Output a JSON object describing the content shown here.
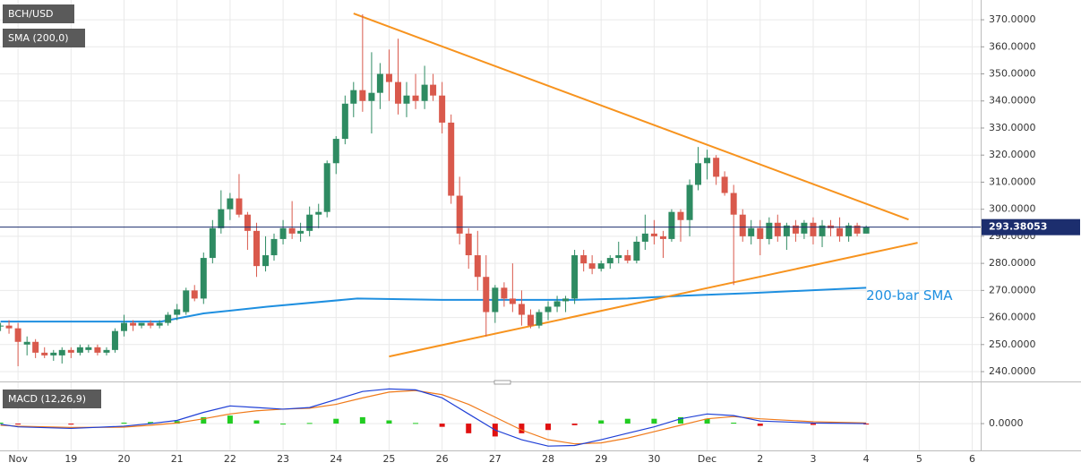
{
  "chart_data": {
    "type": "candlestick",
    "title": "BCH/USD",
    "indicator_label": "SMA (200,0)",
    "x": [
      -0.33,
      -0.17,
      0,
      0.17,
      0.33,
      0.5,
      0.67,
      0.83,
      1,
      1.17,
      1.33,
      1.5,
      1.67,
      1.83,
      2,
      2.17,
      2.33,
      2.5,
      2.67,
      2.83,
      3,
      3.17,
      3.33,
      3.5,
      3.67,
      3.83,
      4,
      4.17,
      4.33,
      4.5,
      4.67,
      4.83,
      5,
      5.17,
      5.33,
      5.5,
      5.67,
      5.83,
      6,
      6.17,
      6.33,
      6.5,
      6.67,
      6.83,
      7,
      7.17,
      7.33,
      7.5,
      7.67,
      7.83,
      8,
      8.17,
      8.33,
      8.5,
      8.67,
      8.83,
      9,
      9.17,
      9.33,
      9.5,
      9.67,
      9.83,
      10,
      10.17,
      10.33,
      10.5,
      10.67,
      10.83,
      11,
      11.17,
      11.33,
      11.5,
      11.67,
      11.83,
      12,
      12.17,
      12.33,
      12.5,
      12.67,
      12.83,
      13,
      13.17,
      13.33,
      13.5,
      13.67,
      13.83,
      14,
      14.17,
      14.33,
      14.5,
      14.67,
      14.83,
      15,
      15.17,
      15.33,
      15.5,
      15.67,
      15.83,
      16
    ],
    "open": [
      257,
      257,
      256,
      250,
      251,
      247,
      246,
      246,
      248,
      247,
      248,
      249,
      247,
      248,
      255,
      258,
      257,
      258,
      257,
      258,
      261,
      262,
      270,
      267,
      282,
      293,
      300,
      304,
      298,
      292,
      279,
      283,
      289,
      293,
      291,
      292,
      298,
      299,
      317,
      326,
      339,
      344,
      340,
      343,
      350,
      347,
      339,
      342,
      340,
      346,
      342,
      332,
      305,
      291,
      283,
      275,
      262,
      271,
      267,
      265,
      261,
      257,
      262,
      264,
      266,
      267,
      283,
      280,
      278,
      280,
      282,
      283,
      281,
      288,
      291,
      290,
      289,
      299,
      296,
      309,
      317,
      319,
      312,
      306,
      298,
      290,
      293,
      289,
      295,
      290,
      294,
      291,
      295,
      290,
      294,
      293,
      290,
      294,
      291
    ],
    "high": [
      258,
      259,
      258,
      253,
      252,
      249,
      248,
      249,
      249,
      250,
      250,
      250,
      249,
      256,
      261,
      259,
      258,
      259,
      259,
      262,
      265,
      271,
      272,
      284,
      296,
      307,
      306,
      313,
      299,
      295,
      290,
      291,
      296,
      303,
      295,
      301,
      302,
      318,
      327,
      342,
      347,
      372,
      358,
      354,
      359,
      363,
      347,
      350,
      353,
      350,
      347,
      335,
      312,
      293,
      292,
      283,
      272,
      273,
      280,
      270,
      263,
      263,
      266,
      268,
      268,
      285,
      285,
      283,
      281,
      283,
      288,
      285,
      290,
      298,
      296,
      292,
      300,
      300,
      311,
      323,
      322,
      320,
      314,
      309,
      300,
      296,
      296,
      297,
      298,
      295,
      296,
      296,
      297,
      296,
      296,
      297,
      295,
      295,
      294
    ],
    "low": [
      255,
      254,
      242,
      246,
      245,
      245,
      244,
      243,
      245,
      246,
      247,
      246,
      246,
      247,
      253,
      255,
      256,
      256,
      256,
      257,
      259,
      261,
      266,
      265,
      280,
      291,
      296,
      297,
      285,
      275,
      277,
      281,
      287,
      289,
      288,
      290,
      293,
      297,
      313,
      324,
      334,
      336,
      328,
      337,
      340,
      335,
      334,
      337,
      337,
      340,
      328,
      302,
      287,
      278,
      270,
      253,
      258,
      264,
      262,
      257,
      256,
      256,
      259,
      262,
      262,
      265,
      277,
      276,
      277,
      278,
      280,
      280,
      280,
      285,
      287,
      282,
      288,
      288,
      290,
      307,
      311,
      309,
      305,
      272,
      288,
      287,
      283,
      287,
      288,
      285,
      288,
      289,
      287,
      286,
      290,
      288,
      288,
      290,
      291
    ],
    "close": [
      257,
      256,
      251,
      251,
      247,
      246,
      247,
      248,
      247,
      249,
      249,
      247,
      248,
      255,
      258,
      257,
      258,
      257,
      258,
      261,
      263,
      270,
      267,
      282,
      293,
      300,
      304,
      298,
      292,
      279,
      283,
      289,
      293,
      291,
      292,
      298,
      299,
      317,
      326,
      339,
      344,
      340,
      343,
      350,
      347,
      339,
      342,
      340,
      346,
      342,
      332,
      305,
      291,
      283,
      275,
      262,
      271,
      267,
      265,
      261,
      257,
      262,
      264,
      266,
      267,
      283,
      280,
      278,
      280,
      282,
      283,
      281,
      288,
      291,
      290,
      289,
      299,
      296,
      309,
      317,
      319,
      312,
      306,
      298,
      290,
      293,
      289,
      295,
      290,
      294,
      291,
      295,
      290,
      294,
      293,
      290,
      294,
      291,
      293.38053
    ],
    "up_color": "#2e8b62",
    "down_color": "#d9594c",
    "sma": {
      "x": [
        -0.33,
        2.7,
        3.5,
        4.7,
        6.4,
        8,
        9,
        10.5,
        11.5,
        12.5,
        13.8,
        16
      ],
      "values": [
        258.5,
        258.5,
        261.5,
        264,
        267,
        266.5,
        266.5,
        266.5,
        267,
        268,
        269,
        271
      ],
      "color": "#1e8fe0"
    },
    "sma_annotation": {
      "text": "200-bar SMA",
      "x": 16,
      "y": 268
    },
    "trendlines": [
      {
        "x": [
          6.33,
          16.8
        ],
        "values": [
          372.3,
          296.2
        ]
      },
      {
        "x": [
          7.0,
          16.97
        ],
        "values": [
          245.6,
          287.6
        ]
      }
    ],
    "trendline_color": "#f7931e",
    "price_line_color": "#1c2e6e",
    "xlim": [
      -0.34,
      18.16
    ],
    "ylim": [
      236.7,
      377.3
    ],
    "xticks": [
      {
        "value": 0,
        "label": "Nov"
      },
      {
        "value": 1,
        "label": "19"
      },
      {
        "value": 2,
        "label": "20"
      },
      {
        "value": 3,
        "label": "21"
      },
      {
        "value": 4,
        "label": "22"
      },
      {
        "value": 5,
        "label": "23"
      },
      {
        "value": 6,
        "label": "24"
      },
      {
        "value": 7,
        "label": "25"
      },
      {
        "value": 8,
        "label": "26"
      },
      {
        "value": 9,
        "label": "27"
      },
      {
        "value": 10,
        "label": "28"
      },
      {
        "value": 11,
        "label": "29"
      },
      {
        "value": 12,
        "label": "30"
      },
      {
        "value": 13,
        "label": "Dec"
      },
      {
        "value": 14,
        "label": "2"
      },
      {
        "value": 15,
        "label": "3"
      },
      {
        "value": 16,
        "label": "4"
      },
      {
        "value": 17,
        "label": "5"
      },
      {
        "value": 18,
        "label": "6"
      }
    ],
    "yticks": [
      {
        "value": 240,
        "label": "240.0000"
      },
      {
        "value": 250,
        "label": "250.0000"
      },
      {
        "value": 260,
        "label": "260.0000"
      },
      {
        "value": 270,
        "label": "270.0000"
      },
      {
        "value": 280,
        "label": "280.0000"
      },
      {
        "value": 290,
        "label": "290.0000"
      },
      {
        "value": 300,
        "label": "300.0000"
      },
      {
        "value": 310,
        "label": "310.0000"
      },
      {
        "value": 320,
        "label": "320.0000"
      },
      {
        "value": 330,
        "label": "330.0000"
      },
      {
        "value": 340,
        "label": "340.0000"
      },
      {
        "value": 350,
        "label": "350.0000"
      },
      {
        "value": 360,
        "label": "360.0000"
      },
      {
        "value": 370,
        "label": "370.0000"
      }
    ],
    "grid": true,
    "macd": {
      "label": "MACD (12,26,9)",
      "ylim": [
        -7.5,
        12
      ],
      "yticks": [
        {
          "value": 0,
          "label": "0.0000"
        }
      ],
      "x": [
        -0.33,
        0,
        1,
        2,
        2.5,
        3,
        3.5,
        4,
        4.5,
        5,
        5.5,
        6,
        6.5,
        7,
        7.5,
        8,
        8.5,
        9,
        9.5,
        10,
        10.5,
        11,
        11.5,
        12,
        12.5,
        13,
        13.5,
        14,
        15,
        16
      ],
      "macd": [
        -0.2,
        -1,
        -1.5,
        -0.8,
        0,
        1,
        3.5,
        5.5,
        5,
        4.5,
        5,
        7.5,
        10,
        10.8,
        10.5,
        8,
        3,
        -2,
        -5,
        -7,
        -6.8,
        -5,
        -3,
        -1,
        1.5,
        3,
        2.5,
        0.8,
        0.2,
        0
      ],
      "signal": [
        -0.5,
        -0.8,
        -1.2,
        -1.1,
        -0.5,
        0.2,
        1.5,
        3,
        4,
        4.5,
        4.8,
        6,
        8,
        9.8,
        10.3,
        9,
        6,
        2,
        -2,
        -5,
        -6.3,
        -6,
        -4.5,
        -2.5,
        -0.5,
        1.5,
        2.2,
        1.5,
        0.6,
        0.2
      ],
      "histogram": [
        0.3,
        -0.2,
        -0.3,
        0.3,
        0.5,
        0.8,
        2,
        2.5,
        1,
        0,
        0.2,
        1.5,
        2,
        1,
        0.2,
        -1,
        -3,
        -4,
        -3,
        -2,
        -0.5,
        1,
        1.5,
        1.5,
        2,
        1.5,
        0.3,
        -0.7,
        -0.4,
        -0.2
      ],
      "macd_color": "#1f3fd6",
      "signal_color": "#f07a1a",
      "hist_up_color": "#22cc22",
      "hist_down_color": "#e01010"
    }
  }
}
